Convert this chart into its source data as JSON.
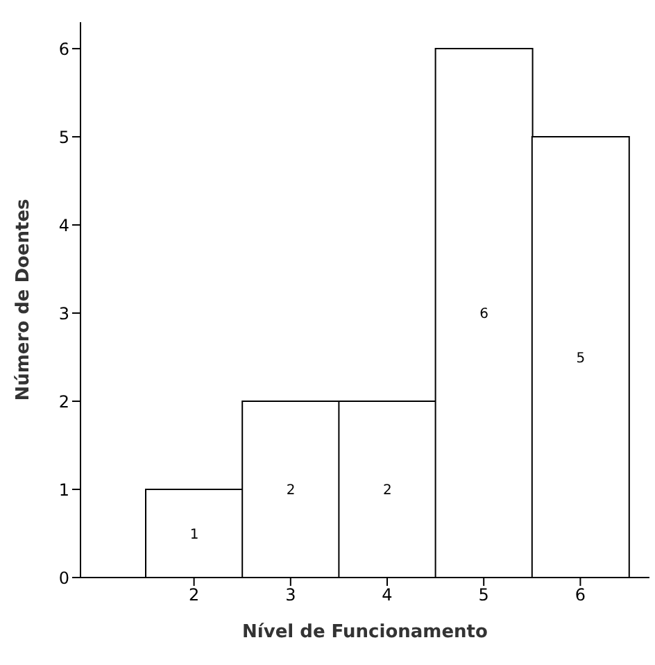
{
  "chart_data": {
    "type": "bar",
    "xlabel": "Nível de Funcionamento",
    "ylabel": "Número de Doentes",
    "categories": [
      "2",
      "3",
      "4",
      "5",
      "6"
    ],
    "values": [
      1,
      2,
      2,
      6,
      5
    ],
    "color": "#ffffff",
    "ylim": [
      0,
      6.3
    ],
    "yticks": [
      0,
      1,
      2,
      3,
      4,
      5,
      6
    ],
    "data_labels": true,
    "grid": false,
    "legend": false
  }
}
